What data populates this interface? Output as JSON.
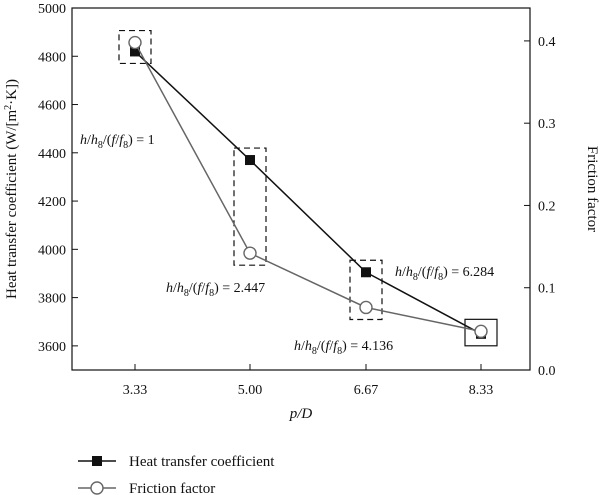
{
  "chart_data": {
    "type": "line",
    "x": [
      3.33,
      5.0,
      6.67,
      8.33
    ],
    "xticks": [
      "3.33",
      "5.00",
      "6.67",
      "8.33"
    ],
    "xlabel": "p/D",
    "ylabel_left": "Heat transfer coefficient (W/[m2·K])",
    "ylabel_right": "Friction factor",
    "ylim_left": [
      3500,
      5000
    ],
    "ylim_right": [
      0.0,
      0.44
    ],
    "yticks_left": [
      3600,
      3800,
      4000,
      4200,
      4400,
      4600,
      4800,
      5000
    ],
    "yticks_right": [
      0.0,
      0.1,
      0.2,
      0.3,
      0.4
    ],
    "series": [
      {
        "name": "Heat transfer coefficient",
        "axis": "left",
        "color": "#111111",
        "marker": "square",
        "values": [
          4820,
          4370,
          3905,
          3650
        ]
      },
      {
        "name": "Friction factor",
        "axis": "right",
        "color": "#666666",
        "marker": "circle",
        "values": [
          0.398,
          0.142,
          0.076,
          0.047
        ]
      }
    ],
    "annotations": [
      {
        "text": "h/h8/(f/f8) = 1",
        "point": 0
      },
      {
        "text": "h/h8/(f/f8) = 2.447",
        "point": 1
      },
      {
        "text": "h/h8/(f/f8) = 4.136",
        "point": 2
      },
      {
        "text": "h/h8/(f/f8) = 6.284",
        "point": 3
      }
    ],
    "legend_position": "bottom",
    "grid": false
  }
}
